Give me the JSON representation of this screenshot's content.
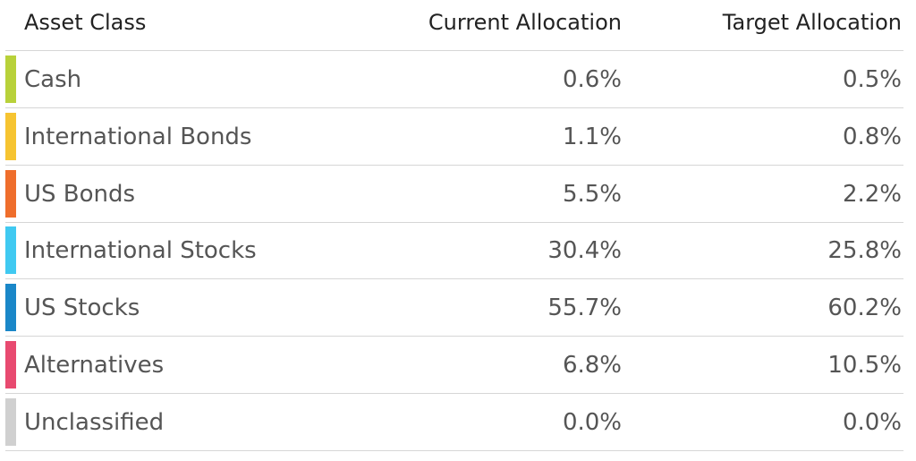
{
  "table": {
    "header": [
      "Asset Class",
      "Current Allocation",
      "Target Allocation"
    ],
    "rows": [
      {
        "color": "#b8d13a",
        "cells": [
          "Cash",
          "0.6%",
          "0.5%"
        ]
      },
      {
        "color": "#f6c431",
        "cells": [
          "International Bonds",
          "1.1%",
          "0.8%"
        ]
      },
      {
        "color": "#ef6e2c",
        "cells": [
          "US Bonds",
          "5.5%",
          "2.2%"
        ]
      },
      {
        "color": "#40c9f1",
        "cells": [
          "International Stocks",
          "30.4%",
          "25.8%"
        ]
      },
      {
        "color": "#1a87c8",
        "cells": [
          "US Stocks",
          "55.7%",
          "60.2%"
        ]
      },
      {
        "color": "#e84a70",
        "cells": [
          "Alternatives",
          "6.8%",
          "10.5%"
        ]
      },
      {
        "color": "#d0d0d0",
        "cells": [
          "Unclassified",
          "0.0%",
          "0.0%"
        ]
      }
    ]
  }
}
